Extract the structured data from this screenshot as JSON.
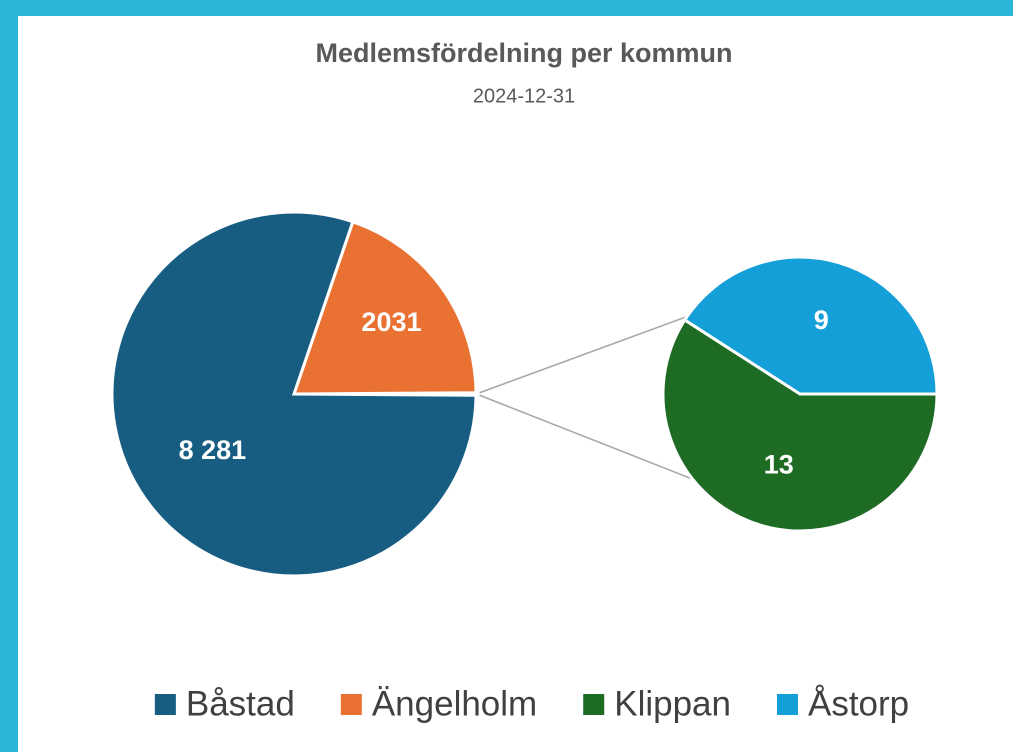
{
  "chart_data": {
    "type": "pie-of-pie",
    "title": "Medlemsfördelning per kommun",
    "subtitle": "2024-12-31",
    "categories": [
      "Båstad",
      "Ängelholm",
      "Klippan",
      "Åstorp"
    ],
    "values": [
      8281,
      2031,
      13,
      9
    ],
    "value_labels": [
      "8 281",
      "2031",
      "13",
      "9"
    ],
    "colors": [
      "#175d81",
      "#e97132",
      "#1e6b24",
      "#149fd8"
    ],
    "secondary_count": 2,
    "legend": "bottom"
  }
}
